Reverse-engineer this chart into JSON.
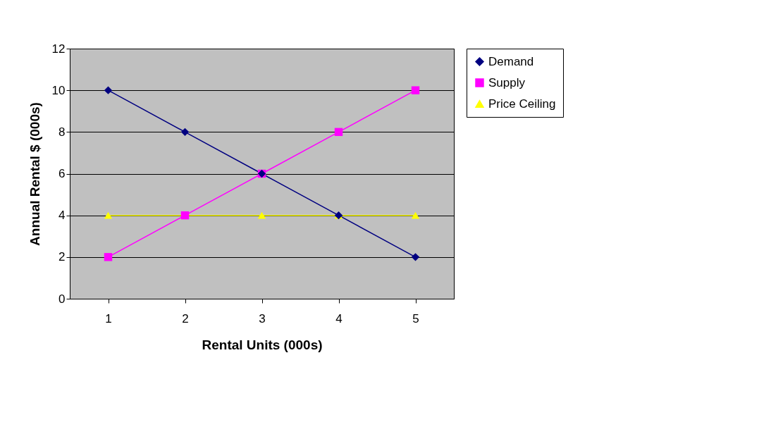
{
  "chart_data": {
    "type": "line",
    "xlabel": "Rental Units (000s)",
    "ylabel": "Annual Rental $ (000s)",
    "categories": [
      "1",
      "2",
      "3",
      "4",
      "5"
    ],
    "series": [
      {
        "name": "Demand",
        "color": "#000080",
        "marker": "diamond",
        "values": [
          10,
          8,
          6,
          4,
          2
        ]
      },
      {
        "name": "Supply",
        "color": "#ff00ff",
        "marker": "square",
        "values": [
          2,
          4,
          6,
          8,
          10
        ]
      },
      {
        "name": "Price Ceiling",
        "color": "#ffff00",
        "marker": "triangle",
        "values": [
          4,
          4,
          4,
          4,
          4
        ]
      }
    ],
    "ylim": [
      0,
      12
    ],
    "yticks": [
      0,
      2,
      4,
      6,
      8,
      10,
      12
    ],
    "grid": "y",
    "legend": "right",
    "line_style": "solid"
  }
}
